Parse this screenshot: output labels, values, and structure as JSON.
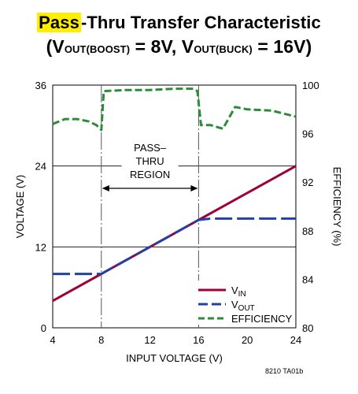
{
  "title": {
    "highlight": "Pass",
    "line1_rest": "-Thru Transfer Characteristic",
    "line2": {
      "open": "(V",
      "sub1": "OUT(BOOST)",
      "mid": " = 8V, V",
      "sub2": "OUT(BUCK)",
      "close": " = 16V)"
    }
  },
  "colors": {
    "highlight": "#ffee00",
    "vin": "#a0003a",
    "vout": "#2340a8",
    "efficiency": "#2e8b3a",
    "grid": "#000000",
    "region_line": "#555555"
  },
  "figure_id": "8210 TA01b",
  "chart_data": {
    "type": "line",
    "xlabel": "INPUT VOLTAGE (V)",
    "ylabel": "VOLTAGE (V)",
    "y2label": "EFFICIENCY (%)",
    "xlim": [
      4,
      24
    ],
    "ylim": [
      0,
      36
    ],
    "y2lim": [
      80,
      100
    ],
    "xticks": [
      4,
      8,
      12,
      16,
      20,
      24
    ],
    "yticks": [
      0,
      12,
      24,
      36
    ],
    "y2ticks": [
      80,
      84,
      88,
      92,
      96,
      100
    ],
    "grid_y": [
      12,
      24
    ],
    "annotation": {
      "lines": [
        "PASS–",
        "THRU",
        "REGION"
      ],
      "x_from": 8,
      "x_to": 16
    },
    "legend": {
      "position": "bottom-right",
      "vin": {
        "base": "V",
        "sub": "IN"
      },
      "vout": {
        "base": "V",
        "sub": "OUT"
      },
      "efficiency": "EFFICIENCY"
    },
    "series": [
      {
        "name": "VIN",
        "axis": "left",
        "style": "solid",
        "x": [
          4,
          24
        ],
        "y": [
          4,
          24
        ]
      },
      {
        "name": "VOUT",
        "axis": "left",
        "style": "dashed",
        "x": [
          4,
          8,
          16,
          17,
          24
        ],
        "y": [
          8,
          8,
          16,
          16.2,
          16.2
        ]
      },
      {
        "name": "EFFICIENCY",
        "axis": "right",
        "style": "dashed",
        "x": [
          4,
          5,
          6,
          7,
          7.6,
          8,
          8.2,
          10,
          12,
          14,
          15.6,
          15.9,
          16.2,
          17,
          18,
          19,
          20,
          22,
          24
        ],
        "y": [
          96.8,
          97.2,
          97.2,
          97.0,
          96.7,
          96.3,
          99.5,
          99.6,
          99.6,
          99.7,
          99.7,
          99.5,
          96.7,
          96.7,
          96.4,
          98.2,
          98.0,
          97.9,
          97.4
        ]
      }
    ]
  }
}
